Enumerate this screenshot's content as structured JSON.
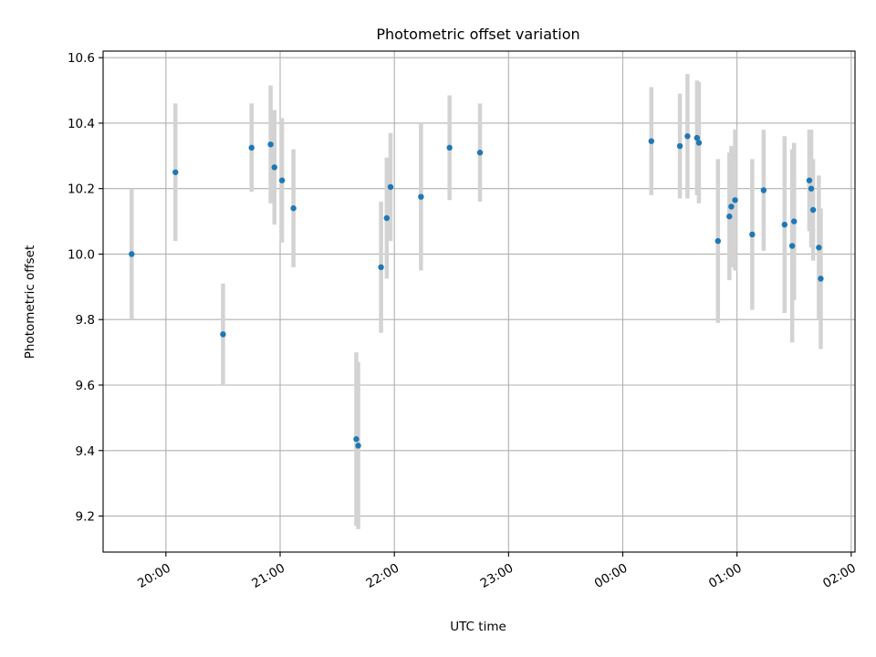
{
  "chart_data": {
    "type": "scatter",
    "title": "Photometric offset variation",
    "xlabel": "UTC time",
    "ylabel": "Photometric offset",
    "xlim": [
      "19:27",
      "02:02"
    ],
    "ylim": [
      9.09,
      10.62
    ],
    "x_ticks": [
      {
        "value": "20:00",
        "label": "20:00"
      },
      {
        "value": "21:00",
        "label": "21:00"
      },
      {
        "value": "22:00",
        "label": "22:00"
      },
      {
        "value": "23:00",
        "label": "23:00"
      },
      {
        "value": "00:00",
        "label": "00:00"
      },
      {
        "value": "01:00",
        "label": "01:00"
      },
      {
        "value": "02:00",
        "label": "02:00"
      }
    ],
    "y_ticks": [
      9.2,
      9.4,
      9.6,
      9.8,
      10.0,
      10.2,
      10.4,
      10.6
    ],
    "y_tick_labels": [
      "9.2",
      "9.4",
      "9.6",
      "9.8",
      "10.0",
      "10.2",
      "10.4",
      "10.6"
    ],
    "grid": true,
    "colors": {
      "point": "#1f77b4",
      "errorbar": "#d3d3d3",
      "grid": "#b0b0b0"
    },
    "series": [
      {
        "points": [
          {
            "x": "19:42",
            "y": 10.0,
            "yerr": 0.2
          },
          {
            "x": "20:05",
            "y": 10.25,
            "yerr": 0.21
          },
          {
            "x": "20:30",
            "y": 9.755,
            "yerr": 0.155
          },
          {
            "x": "20:45",
            "y": 10.325,
            "yerr": 0.135
          },
          {
            "x": "20:55",
            "y": 10.335,
            "yerr": 0.18
          },
          {
            "x": "20:57",
            "y": 10.265,
            "yerr": 0.175
          },
          {
            "x": "21:01",
            "y": 10.225,
            "yerr": 0.19
          },
          {
            "x": "21:07",
            "y": 10.14,
            "yerr": 0.18
          },
          {
            "x": "21:40",
            "y": 9.435,
            "yerr": 0.265
          },
          {
            "x": "21:41",
            "y": 9.415,
            "yerr": 0.255
          },
          {
            "x": "21:53",
            "y": 9.96,
            "yerr": 0.2
          },
          {
            "x": "21:56",
            "y": 10.11,
            "yerr": 0.185
          },
          {
            "x": "21:58",
            "y": 10.205,
            "yerr": 0.165
          },
          {
            "x": "22:14",
            "y": 10.175,
            "yerr": 0.225
          },
          {
            "x": "22:29",
            "y": 10.325,
            "yerr": 0.16
          },
          {
            "x": "22:45",
            "y": 10.31,
            "yerr": 0.15
          },
          {
            "x": "00:15",
            "y": 10.345,
            "yerr": 0.165
          },
          {
            "x": "00:30",
            "y": 10.33,
            "yerr": 0.16
          },
          {
            "x": "00:34",
            "y": 10.36,
            "yerr": 0.19
          },
          {
            "x": "00:39",
            "y": 10.355,
            "yerr": 0.175
          },
          {
            "x": "00:40",
            "y": 10.34,
            "yerr": 0.185
          },
          {
            "x": "00:50",
            "y": 10.04,
            "yerr": 0.25
          },
          {
            "x": "00:56",
            "y": 10.115,
            "yerr": 0.195
          },
          {
            "x": "00:57",
            "y": 10.145,
            "yerr": 0.185
          },
          {
            "x": "00:59",
            "y": 10.165,
            "yerr": 0.215
          },
          {
            "x": "01:08",
            "y": 10.06,
            "yerr": 0.23
          },
          {
            "x": "01:14",
            "y": 10.195,
            "yerr": 0.185
          },
          {
            "x": "01:25",
            "y": 10.09,
            "yerr": 0.27
          },
          {
            "x": "01:29",
            "y": 10.025,
            "yerr": 0.295
          },
          {
            "x": "01:30",
            "y": 10.1,
            "yerr": 0.24
          },
          {
            "x": "01:38",
            "y": 10.225,
            "yerr": 0.155
          },
          {
            "x": "01:39",
            "y": 10.2,
            "yerr": 0.18
          },
          {
            "x": "01:40",
            "y": 10.135,
            "yerr": 0.155
          },
          {
            "x": "01:43",
            "y": 10.02,
            "yerr": 0.22
          },
          {
            "x": "01:44",
            "y": 9.925,
            "yerr": 0.215
          }
        ]
      }
    ]
  }
}
